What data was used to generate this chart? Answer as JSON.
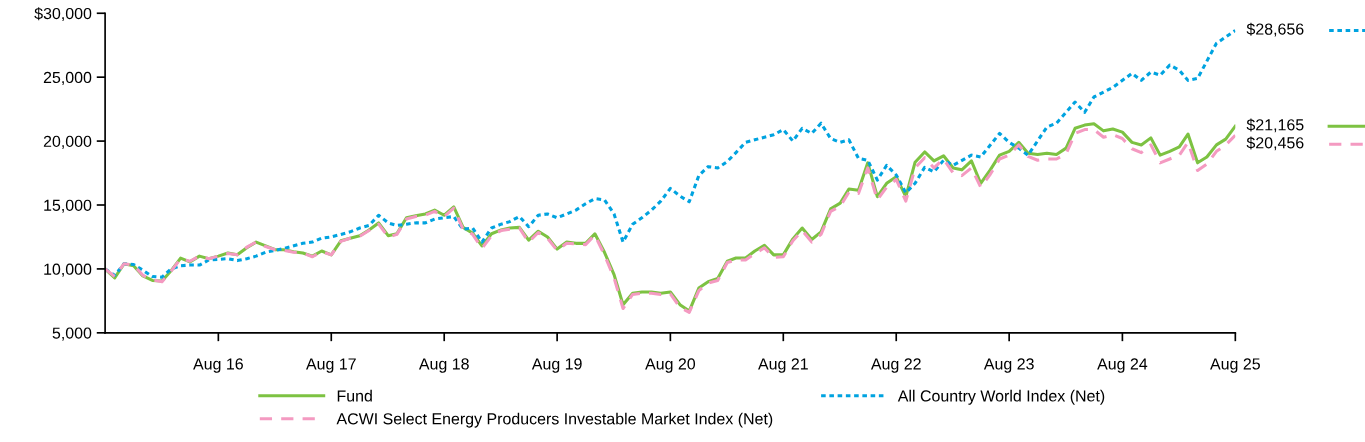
{
  "chart_data": {
    "type": "line",
    "x": [
      "2015-08",
      "2015-09",
      "2015-10",
      "2015-11",
      "2015-12",
      "2016-01",
      "2016-02",
      "2016-03",
      "2016-04",
      "2016-05",
      "2016-06",
      "2016-07",
      "2016-08",
      "2016-09",
      "2016-10",
      "2016-11",
      "2016-12",
      "2017-01",
      "2017-02",
      "2017-03",
      "2017-04",
      "2017-05",
      "2017-06",
      "2017-07",
      "2017-08",
      "2017-09",
      "2017-10",
      "2017-11",
      "2017-12",
      "2018-01",
      "2018-02",
      "2018-03",
      "2018-04",
      "2018-05",
      "2018-06",
      "2018-07",
      "2018-08",
      "2018-09",
      "2018-10",
      "2018-11",
      "2018-12",
      "2019-01",
      "2019-02",
      "2019-03",
      "2019-04",
      "2019-05",
      "2019-06",
      "2019-07",
      "2019-08",
      "2019-09",
      "2019-10",
      "2019-11",
      "2019-12",
      "2020-01",
      "2020-02",
      "2020-03",
      "2020-04",
      "2020-05",
      "2020-06",
      "2020-07",
      "2020-08",
      "2020-09",
      "2020-10",
      "2020-11",
      "2020-12",
      "2021-01",
      "2021-02",
      "2021-03",
      "2021-04",
      "2021-05",
      "2021-06",
      "2021-07",
      "2021-08",
      "2021-09",
      "2021-10",
      "2021-11",
      "2021-12",
      "2022-01",
      "2022-02",
      "2022-03",
      "2022-04",
      "2022-05",
      "2022-06",
      "2022-07",
      "2022-08",
      "2022-09",
      "2022-10",
      "2022-11",
      "2022-12",
      "2023-01",
      "2023-02",
      "2023-03",
      "2023-04",
      "2023-05",
      "2023-06",
      "2023-07",
      "2023-08",
      "2023-09",
      "2023-10",
      "2023-11",
      "2023-12",
      "2024-01",
      "2024-02",
      "2024-03",
      "2024-04",
      "2024-05",
      "2024-06",
      "2024-07",
      "2024-08",
      "2024-09",
      "2024-10",
      "2024-11",
      "2024-12",
      "2025-01",
      "2025-02",
      "2025-03",
      "2025-04",
      "2025-05",
      "2025-06",
      "2025-07",
      "2025-08"
    ],
    "series": [
      {
        "name": "Fund",
        "color": "#7dc242",
        "line_style": "solid",
        "values": [
          10000,
          9300,
          10400,
          10250,
          9450,
          9100,
          9050,
          9850,
          10850,
          10550,
          11000,
          10800,
          11000,
          11250,
          11100,
          11650,
          12100,
          11800,
          11500,
          11500,
          11350,
          11250,
          11000,
          11400,
          11100,
          12200,
          12400,
          12600,
          13050,
          13600,
          12600,
          12750,
          14000,
          14150,
          14300,
          14600,
          14200,
          14850,
          13250,
          12800,
          11800,
          12750,
          13050,
          13200,
          13250,
          12250,
          12950,
          12500,
          11550,
          12100,
          12000,
          12000,
          12750,
          11300,
          9550,
          7200,
          8100,
          8200,
          8200,
          8100,
          8200,
          7200,
          6700,
          8500,
          9000,
          9250,
          10600,
          10850,
          10850,
          11400,
          11850,
          11100,
          11100,
          12350,
          13200,
          12300,
          12900,
          14700,
          15150,
          16250,
          16150,
          18300,
          15650,
          16700,
          17200,
          15650,
          18350,
          19150,
          18450,
          18850,
          17900,
          17750,
          18450,
          16700,
          17750,
          18900,
          19200,
          19900,
          19050,
          18950,
          19050,
          18950,
          19450,
          21000,
          21250,
          21350,
          20800,
          20950,
          20700,
          19900,
          19700,
          20250,
          18900,
          19200,
          19550,
          20550,
          18300,
          18750,
          19700,
          20150,
          21165
        ]
      },
      {
        "name": "All Country World Index (Net)",
        "color": "#00a3e0",
        "line_style": "dotted",
        "x": [
          "2015-08",
          "2015-09",
          "2015-10",
          "2015-11",
          "2015-12",
          "2016-01",
          "2016-02",
          "2016-03",
          "2016-04",
          "2016-05",
          "2016-06",
          "2016-07",
          "2016-08",
          "2016-09",
          "2016-10",
          "2016-11",
          "2016-12",
          "2017-01",
          "2017-03",
          "2017-05",
          "2017-06",
          "2017-07",
          "2017-08",
          "2017-09",
          "2017-10",
          "2017-11",
          "2017-12",
          "2018-01",
          "2018-02",
          "2018-03",
          "2018-04",
          "2018-05",
          "2018-06",
          "2018-07",
          "2018-08",
          "2018-09",
          "2018-10",
          "2018-11",
          "2018-12",
          "2019-01",
          "2019-02",
          "2019-03",
          "2019-04",
          "2019-05",
          "2019-06",
          "2019-07",
          "2019-08",
          "2019-09",
          "2019-10",
          "2019-11",
          "2019-12",
          "2020-01",
          "2020-02",
          "2020-03",
          "2020-04",
          "2020-05",
          "2020-06",
          "2020-07",
          "2020-08",
          "2020-09",
          "2020-10",
          "2020-11",
          "2020-12",
          "2021-01",
          "2021-02",
          "2021-03",
          "2021-04",
          "2021-05",
          "2021-06",
          "2021-07",
          "2021-08",
          "2021-09",
          "2021-10",
          "2021-11",
          "2021-12",
          "2022-01",
          "2022-02",
          "2022-03",
          "2022-04",
          "2022-05",
          "2022-06",
          "2022-07",
          "2022-08",
          "2022-09",
          "2022-10",
          "2022-11",
          "2022-12",
          "2023-01",
          "2023-02",
          "2023-04",
          "2023-05",
          "2023-07",
          "2023-08",
          "2023-09",
          "2023-10",
          "2023-12",
          "2024-01",
          "2024-03",
          "2024-04",
          "2024-05",
          "2024-07",
          "2024-09",
          "2024-10",
          "2024-11",
          "2024-12",
          "2025-01",
          "2025-02",
          "2025-03",
          "2025-04",
          "2025-06",
          "2025-08"
        ],
        "values": [
          10000,
          9500,
          10400,
          10350,
          9900,
          9400,
          9350,
          10000,
          10250,
          10300,
          10300,
          10700,
          10750,
          10800,
          10650,
          10800,
          11000,
          11300,
          11600,
          12000,
          12100,
          12400,
          12500,
          12700,
          12900,
          13200,
          13400,
          14200,
          13600,
          13400,
          13500,
          13600,
          13600,
          13900,
          14000,
          14100,
          13100,
          13200,
          12100,
          13200,
          13500,
          13700,
          14100,
          13300,
          14200,
          14300,
          14000,
          14300,
          14600,
          15100,
          15500,
          15400,
          14300,
          12100,
          13500,
          14000,
          14600,
          15300,
          16300,
          15700,
          15250,
          17300,
          18000,
          17900,
          18400,
          19100,
          19900,
          20100,
          20300,
          20500,
          20900,
          20000,
          21000,
          20600,
          21400,
          20200,
          19900,
          20100,
          18650,
          18500,
          16950,
          18100,
          17350,
          15950,
          16700,
          17950,
          17600,
          18500,
          18100,
          18900,
          18750,
          20600,
          19900,
          19450,
          18900,
          21100,
          21400,
          23050,
          22250,
          23450,
          24200,
          25300,
          24750,
          25400,
          25150,
          25950,
          25550,
          24750,
          24900,
          27650,
          28656
        ]
      },
      {
        "name": "ACWI Select Energy Producers Investable Market Index (Net)",
        "color": "#f49ac1",
        "line_style": "dashed",
        "values": [
          10000,
          9400,
          10400,
          10300,
          9500,
          9150,
          9000,
          9800,
          10800,
          10600,
          11000,
          10800,
          11000,
          11200,
          11100,
          11700,
          12100,
          11750,
          11500,
          11450,
          11300,
          11250,
          10950,
          11350,
          11100,
          12150,
          12400,
          12550,
          13000,
          13500,
          12500,
          12700,
          13900,
          14100,
          14200,
          14500,
          14100,
          14750,
          13100,
          12700,
          11600,
          12600,
          13000,
          13100,
          13200,
          12100,
          12850,
          12400,
          11450,
          12000,
          11950,
          11900,
          12650,
          11100,
          9300,
          6900,
          8000,
          8100,
          8100,
          8000,
          8050,
          7000,
          6600,
          8300,
          8900,
          9100,
          10500,
          10700,
          10700,
          11200,
          11650,
          10900,
          10950,
          12200,
          13000,
          12100,
          12700,
          14500,
          14900,
          16000,
          15900,
          17900,
          15400,
          16400,
          17000,
          15300,
          17900,
          18700,
          17900,
          18600,
          17500,
          17300,
          17900,
          16400,
          17400,
          18600,
          18900,
          19700,
          18800,
          18500,
          18600,
          18600,
          19000,
          20600,
          20900,
          20900,
          20300,
          20500,
          20200,
          19400,
          19100,
          19700,
          18300,
          18600,
          18900,
          19900,
          17700,
          18200,
          19200,
          19700,
          20456
        ]
      }
    ],
    "annotations": [
      {
        "text": "$28,656",
        "x": "2025-08",
        "y": 28656
      },
      {
        "text": "$21,165",
        "x": "2025-08",
        "y": 21165
      },
      {
        "text": "$20,456",
        "x": "2025-08",
        "y": 20456
      }
    ],
    "xlim": [
      "2015-08",
      "2025-08"
    ],
    "xticks": [
      {
        "value": "2016-08",
        "label": "Aug 16"
      },
      {
        "value": "2017-08",
        "label": "Aug 17"
      },
      {
        "value": "2018-08",
        "label": "Aug 18"
      },
      {
        "value": "2019-08",
        "label": "Aug 19"
      },
      {
        "value": "2020-08",
        "label": "Aug 20"
      },
      {
        "value": "2021-08",
        "label": "Aug 21"
      },
      {
        "value": "2022-08",
        "label": "Aug 22"
      },
      {
        "value": "2023-08",
        "label": "Aug 23"
      },
      {
        "value": "2024-08",
        "label": "Aug 24"
      },
      {
        "value": "2025-08",
        "label": "Aug 25"
      }
    ],
    "ylim": [
      5000,
      30000
    ],
    "yticks": [
      {
        "value": 5000,
        "label": "5,000"
      },
      {
        "value": 10000,
        "label": "10,000"
      },
      {
        "value": 15000,
        "label": "15,000"
      },
      {
        "value": 20000,
        "label": "20,000"
      },
      {
        "value": 25000,
        "label": "25,000"
      },
      {
        "value": 30000,
        "label": "$30,000"
      }
    ],
    "grid": false,
    "legend": "bottom"
  }
}
